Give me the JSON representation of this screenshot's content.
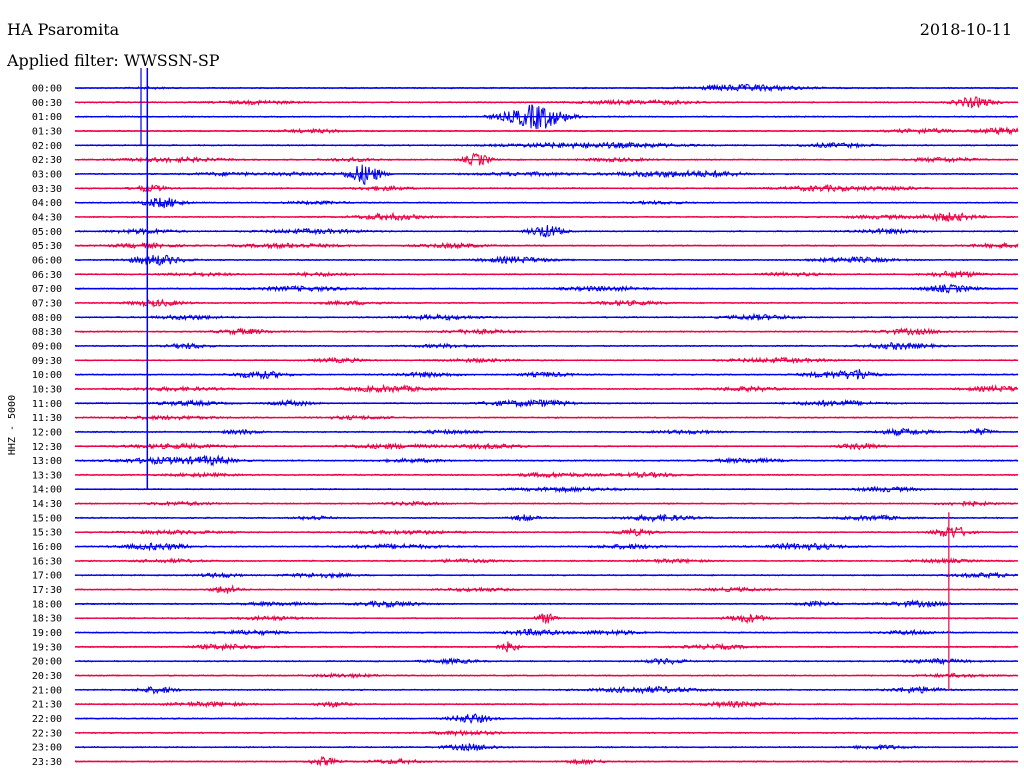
{
  "header": {
    "station": "HA Psaromita",
    "date": "2018-10-11",
    "filter": "Applied filter: WWSSN-SP"
  },
  "chart_data": {
    "type": "line",
    "ylabel": "HHZ - 5000",
    "x_range_minutes": [
      0,
      30
    ],
    "y_tick_labels": [
      "00:00",
      "00:30",
      "01:00",
      "01:30",
      "02:00",
      "02:30",
      "03:00",
      "03:30",
      "04:00",
      "04:30",
      "05:00",
      "05:30",
      "06:00",
      "06:30",
      "07:00",
      "07:30",
      "08:00",
      "08:30",
      "09:00",
      "09:30",
      "10:00",
      "10:30",
      "11:00",
      "11:30",
      "12:00",
      "12:30",
      "13:00",
      "13:30",
      "14:00",
      "14:30",
      "15:00",
      "15:30",
      "16:00",
      "16:30",
      "17:00",
      "17:30",
      "18:00",
      "18:30",
      "19:00",
      "19:30",
      "20:00",
      "20:30",
      "21:00",
      "21:30",
      "22:00",
      "22:30",
      "23:00",
      "23:30"
    ],
    "trace_colors": [
      "#0000ee",
      "#ee0044"
    ],
    "bursts_by_trace": [
      [
        [
          2.4,
          0.6,
          0.6
        ],
        [
          20.8,
          1.2,
          1.5
        ],
        [
          21.8,
          1.5,
          2
        ]
      ],
      [
        [
          5.8,
          1.2,
          1.5
        ],
        [
          17.2,
          1.2,
          1.5
        ],
        [
          19,
          1,
          1.5
        ],
        [
          28.6,
          0.6,
          5
        ]
      ],
      [
        [
          14.6,
          1,
          9
        ],
        [
          14.8,
          0.5,
          4
        ]
      ],
      [
        [
          7.6,
          1,
          1.5
        ],
        [
          27,
          1,
          2
        ],
        [
          29.6,
          0.8,
          3
        ]
      ],
      [
        [
          15.6,
          2,
          2
        ],
        [
          18,
          1.5,
          1.5
        ],
        [
          24.2,
          1,
          2
        ]
      ],
      [
        [
          3.2,
          1.5,
          2
        ],
        [
          8.8,
          0.8,
          1.5
        ],
        [
          12.8,
          0.4,
          6
        ],
        [
          17.2,
          1,
          1.5
        ],
        [
          27.6,
          1,
          2
        ]
      ],
      [
        [
          4.8,
          1,
          1.5
        ],
        [
          7.2,
          1,
          1.5
        ],
        [
          9.2,
          0.5,
          10
        ],
        [
          14.4,
          1.5,
          1.5
        ],
        [
          18.6,
          1.5,
          2.5
        ],
        [
          20.4,
          1,
          2
        ]
      ],
      [
        [
          2.4,
          0.5,
          3
        ],
        [
          9.8,
          0.8,
          2
        ],
        [
          23.8,
          1.2,
          2.5
        ],
        [
          26,
          1,
          1.5
        ]
      ],
      [
        [
          2.8,
          0.6,
          5
        ],
        [
          7.6,
          1,
          1.2
        ],
        [
          18.6,
          0.8,
          1.2
        ]
      ],
      [
        [
          10,
          1,
          3
        ],
        [
          25.6,
          1,
          1.5
        ],
        [
          27.8,
          0.8,
          4
        ]
      ],
      [
        [
          2.2,
          1,
          2
        ],
        [
          7.6,
          1.5,
          2
        ],
        [
          15,
          0.5,
          6
        ],
        [
          25.8,
          1,
          2
        ]
      ],
      [
        [
          2.2,
          1,
          2
        ],
        [
          6.8,
          1.5,
          2
        ],
        [
          12,
          1,
          2
        ],
        [
          29.6,
          1,
          2
        ]
      ],
      [
        [
          2.6,
          0.8,
          5
        ],
        [
          14,
          1,
          3
        ],
        [
          24.8,
          1.2,
          2.5
        ]
      ],
      [
        [
          4,
          1,
          1.5
        ],
        [
          7.8,
          1,
          1.5
        ],
        [
          22.8,
          1,
          1.5
        ],
        [
          28,
          0.8,
          3
        ]
      ],
      [
        [
          7.2,
          1.5,
          2
        ],
        [
          16.8,
          1.2,
          2
        ],
        [
          27.8,
          0.8,
          3.5
        ]
      ],
      [
        [
          2.6,
          0.8,
          3
        ],
        [
          8.8,
          1,
          1.5
        ],
        [
          17.6,
          1,
          2
        ]
      ],
      [
        [
          3.6,
          1,
          2
        ],
        [
          11.6,
          1.2,
          2
        ],
        [
          21.8,
          1,
          2.5
        ]
      ],
      [
        [
          5.4,
          0.8,
          2.5
        ],
        [
          12.8,
          1,
          2
        ],
        [
          26.6,
          1,
          2.5
        ]
      ],
      [
        [
          3.6,
          0.6,
          2.5
        ],
        [
          11.8,
          1,
          1.5
        ],
        [
          26.2,
          1,
          3
        ]
      ],
      [
        [
          8.4,
          0.8,
          2
        ],
        [
          12.8,
          1,
          1.5
        ],
        [
          22.4,
          1.5,
          2
        ]
      ],
      [
        [
          5.9,
          0.8,
          3.5
        ],
        [
          11.2,
          1,
          2
        ],
        [
          15,
          0.8,
          2
        ],
        [
          24.2,
          1,
          3
        ],
        [
          25,
          0.4,
          4
        ]
      ],
      [
        [
          3.2,
          1.5,
          1.5
        ],
        [
          10,
          1.2,
          3
        ],
        [
          21.4,
          1,
          2
        ],
        [
          29.4,
          1,
          2.5
        ]
      ],
      [
        [
          3.6,
          1,
          2
        ],
        [
          6.9,
          0.6,
          2.5
        ],
        [
          13.8,
          1,
          2
        ],
        [
          15,
          0.8,
          2.5
        ],
        [
          24.2,
          1.2,
          2.5
        ]
      ],
      [
        [
          3,
          1.5,
          1.5
        ],
        [
          9,
          1,
          1.5
        ]
      ],
      [
        [
          5.3,
          0.6,
          2
        ],
        [
          11.8,
          1,
          1.5
        ],
        [
          19.4,
          1,
          1.5
        ],
        [
          26.4,
          0.8,
          3
        ],
        [
          28.8,
          0.4,
          3
        ]
      ],
      [
        [
          3.2,
          1.5,
          2
        ],
        [
          10,
          1.5,
          2
        ],
        [
          13.2,
          1,
          2
        ],
        [
          25,
          0.6,
          3
        ]
      ],
      [
        [
          3,
          1.5,
          3
        ],
        [
          4.4,
          0.6,
          3
        ],
        [
          10.8,
          1,
          1.5
        ],
        [
          21.4,
          1,
          2
        ]
      ],
      [
        [
          4,
          1,
          1.5
        ],
        [
          15.2,
          1.2,
          2
        ],
        [
          18.2,
          1,
          2
        ]
      ],
      [
        [
          15.6,
          1.5,
          2
        ],
        [
          25.8,
          1,
          2
        ]
      ],
      [
        [
          3.4,
          1,
          1.5
        ],
        [
          10.8,
          1,
          1.5
        ],
        [
          28.4,
          0.8,
          2
        ]
      ],
      [
        [
          7.6,
          0.5,
          2
        ],
        [
          14.3,
          0.4,
          3
        ],
        [
          18.6,
          1,
          3
        ],
        [
          25.4,
          1,
          2
        ]
      ],
      [
        [
          3.2,
          1.5,
          1.5
        ],
        [
          10.6,
          1.5,
          1.5
        ],
        [
          17.8,
          0.6,
          3
        ],
        [
          27.9,
          0.5,
          6
        ]
      ],
      [
        [
          2.6,
          1,
          3
        ],
        [
          10.2,
          1.5,
          2
        ],
        [
          17.6,
          1,
          2
        ],
        [
          23.2,
          1.2,
          3
        ]
      ],
      [
        [
          3,
          1,
          1.5
        ],
        [
          12.4,
          1,
          1.5
        ],
        [
          19,
          1,
          1.5
        ],
        [
          27.6,
          1,
          1.5
        ]
      ],
      [
        [
          4.6,
          0.6,
          2
        ],
        [
          7.8,
          1,
          2
        ],
        [
          29,
          1,
          2
        ]
      ],
      [
        [
          4.8,
          0.4,
          4
        ],
        [
          12.8,
          1,
          1.5
        ],
        [
          21,
          1,
          1.5
        ]
      ],
      [
        [
          6.4,
          1,
          1.5
        ],
        [
          10,
          1,
          2.5
        ],
        [
          23.6,
          0.6,
          2
        ],
        [
          26.8,
          1,
          2.5
        ]
      ],
      [
        [
          6.2,
          1,
          1.5
        ],
        [
          15,
          0.3,
          5
        ],
        [
          21.4,
          0.6,
          4
        ]
      ],
      [
        [
          5.6,
          1,
          2
        ],
        [
          14.6,
          0.8,
          3
        ],
        [
          17,
          1,
          2
        ],
        [
          26.6,
          0.8,
          2
        ]
      ],
      [
        [
          4.8,
          1,
          2.5
        ],
        [
          13.8,
          0.3,
          5
        ],
        [
          20.4,
          1,
          2
        ]
      ],
      [
        [
          12,
          0.8,
          2
        ],
        [
          18.8,
          0.6,
          2.5
        ],
        [
          27.4,
          1,
          2
        ]
      ],
      [
        [
          8.6,
          1,
          1.5
        ],
        [
          28,
          1,
          1.5
        ]
      ],
      [
        [
          2.6,
          0.6,
          3
        ],
        [
          18.2,
          1.5,
          3
        ],
        [
          26.8,
          0.8,
          3
        ]
      ],
      [
        [
          4.2,
          1.2,
          2
        ],
        [
          8.2,
          0.5,
          2.5
        ],
        [
          21,
          1,
          2.5
        ]
      ],
      [
        [
          12.6,
          0.6,
          4.5
        ]
      ],
      [
        [
          12.4,
          1,
          2
        ]
      ],
      [
        [
          12.6,
          0.8,
          3
        ],
        [
          25.6,
          0.8,
          2
        ]
      ],
      [
        [
          7.9,
          0.4,
          4
        ],
        [
          10.2,
          0.8,
          2
        ],
        [
          16.2,
          0.6,
          2
        ]
      ]
    ],
    "events": [
      {
        "start_trace": 0,
        "x": 2.3,
        "span_traces": 28,
        "amp": 1.5
      },
      {
        "start_trace": 0,
        "x": 2.1,
        "span_traces": 4,
        "amp": 1.2
      },
      {
        "start_trace": 31,
        "x": 27.8,
        "span_traces": 11,
        "amp": 1.2
      }
    ]
  }
}
